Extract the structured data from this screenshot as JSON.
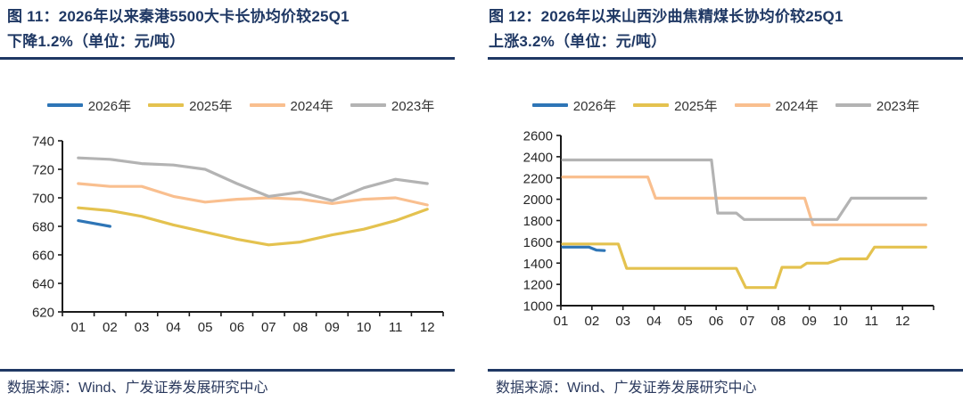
{
  "accent_navy": "#1F3864",
  "figures": [
    {
      "title_line1": "图 11：2026年以来秦港5500大卡长协均价较25Q1",
      "title_line2": "下降1.2%（单位：元/吨）",
      "source": "数据来源：Wind、广发证券发展研究中心"
    },
    {
      "title_line1": "图 12：2026年以来山西沙曲焦精煤长协均价较25Q1",
      "title_line2": "上涨3.2%（单位：元/吨）",
      "source": "数据来源：Wind、广发证券发展研究中心"
    }
  ],
  "chart_data": [
    {
      "type": "line",
      "title": "图 11：2026年以来秦港5500大卡长协均价较25Q1下降1.2%（单位：元/吨）",
      "ylabel": "元/吨",
      "ylim": [
        620,
        740
      ],
      "y_ticks": [
        620,
        640,
        660,
        680,
        700,
        720,
        740
      ],
      "x_tick_labels": [
        "01",
        "02",
        "03",
        "04",
        "05",
        "06",
        "07",
        "08",
        "09",
        "10",
        "11",
        "12"
      ],
      "grid": false,
      "legend_position": "top",
      "series": [
        {
          "name": "2026年",
          "color": "#2E75B6",
          "x": [
            1,
            2
          ],
          "values": [
            684,
            680
          ]
        },
        {
          "name": "2025年",
          "color": "#E4C24F",
          "x": [
            1,
            2,
            3,
            4,
            5,
            6,
            7,
            8,
            9,
            10,
            11,
            12
          ],
          "values": [
            693,
            691,
            687,
            681,
            676,
            671,
            667,
            669,
            674,
            678,
            684,
            692
          ]
        },
        {
          "name": "2024年",
          "color": "#F9BF8F",
          "x": [
            1,
            2,
            3,
            4,
            5,
            6,
            7,
            8,
            9,
            10,
            11,
            12
          ],
          "values": [
            710,
            708,
            708,
            701,
            697,
            699,
            700,
            699,
            696,
            699,
            700,
            695
          ]
        },
        {
          "name": "2023年",
          "color": "#B3B3B3",
          "x": [
            1,
            2,
            3,
            4,
            5,
            6,
            7,
            8,
            9,
            10,
            11,
            12
          ],
          "values": [
            728,
            727,
            724,
            723,
            720,
            710,
            701,
            704,
            698,
            707,
            713,
            710
          ]
        }
      ]
    },
    {
      "type": "line",
      "title": "图 12：2026年以来山西沙曲焦精煤长协均价较25Q1上涨3.2%（单位：元/吨）",
      "ylabel": "元/吨",
      "ylim": [
        1000,
        2600
      ],
      "y_ticks": [
        1000,
        1200,
        1400,
        1600,
        1800,
        2000,
        2200,
        2400,
        2600
      ],
      "x_tick_labels": [
        "01",
        "02",
        "03",
        "04",
        "05",
        "06",
        "07",
        "08",
        "09",
        "10",
        "11",
        "12"
      ],
      "grid": false,
      "legend_position": "top",
      "series": [
        {
          "name": "2026年",
          "color": "#2E75B6",
          "points": [
            [
              1.06,
              1550
            ],
            [
              1.9,
              1550
            ],
            [
              2.15,
              1522
            ],
            [
              2.4,
              1518
            ]
          ]
        },
        {
          "name": "2025年",
          "color": "#E4C24F",
          "points": [
            [
              1.06,
              1580
            ],
            [
              2.85,
              1580
            ],
            [
              3.12,
              1350
            ],
            [
              6.65,
              1350
            ],
            [
              6.95,
              1170
            ],
            [
              7.9,
              1170
            ],
            [
              8.12,
              1360
            ],
            [
              8.72,
              1360
            ],
            [
              8.92,
              1400
            ],
            [
              9.6,
              1400
            ],
            [
              10.0,
              1440
            ],
            [
              10.85,
              1440
            ],
            [
              11.1,
              1550
            ],
            [
              12.75,
              1550
            ]
          ]
        },
        {
          "name": "2024年",
          "color": "#F9BF8F",
          "points": [
            [
              1.06,
              2210
            ],
            [
              3.8,
              2210
            ],
            [
              4.05,
              2010
            ],
            [
              8.85,
              2010
            ],
            [
              9.12,
              1760
            ],
            [
              12.75,
              1760
            ]
          ]
        },
        {
          "name": "2023年",
          "color": "#B3B3B3",
          "points": [
            [
              1.06,
              2370
            ],
            [
              5.85,
              2370
            ],
            [
              6.05,
              1870
            ],
            [
              6.65,
              1870
            ],
            [
              6.9,
              1810
            ],
            [
              9.9,
              1810
            ],
            [
              10.35,
              2010
            ],
            [
              12.75,
              2010
            ]
          ]
        }
      ]
    }
  ]
}
